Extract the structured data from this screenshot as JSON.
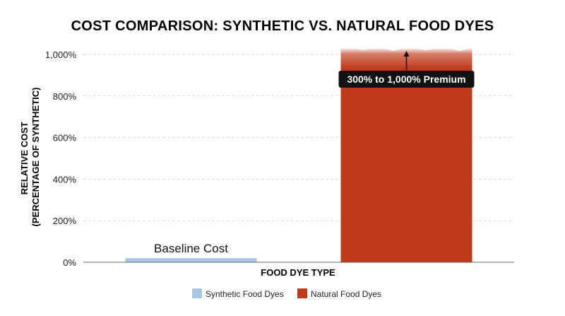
{
  "chart_data": {
    "type": "bar",
    "title": "COST COMPARISON: SYNTHETIC VS. NATURAL FOOD DYES",
    "xlabel": "FOOD DYE TYPE",
    "ylabel_lines": [
      "RELATIVE COST",
      "(PERCENTAGE OF SYNTHETIC)"
    ],
    "ylim": [
      0,
      1000
    ],
    "yticks": [
      0,
      200,
      400,
      600,
      800,
      1000
    ],
    "ytick_labels": [
      "0%",
      "200%",
      "400%",
      "600%",
      "800%",
      "1,000%"
    ],
    "grid": true,
    "legend_position": "bottom-center",
    "categories": [
      "Synthetic Food Dyes",
      "Natural Food Dyes"
    ],
    "series": [
      {
        "name": "Synthetic Food Dyes",
        "values": [
          20,
          null
        ],
        "color": "#a9c8e4"
      },
      {
        "name": "Natural Food Dyes",
        "values": [
          null,
          1000
        ],
        "color": "#c0391b"
      }
    ],
    "annotations": [
      {
        "text": "Baseline Cost",
        "target": "Synthetic Food Dyes"
      },
      {
        "text": "300% to 1,000% Premium",
        "target": "Natural Food Dyes",
        "style": "dark-box-with-arrow"
      }
    ],
    "colors": {
      "annotation_box": "#111111",
      "grid": "#d9d9d9",
      "axis": "#666666"
    }
  }
}
